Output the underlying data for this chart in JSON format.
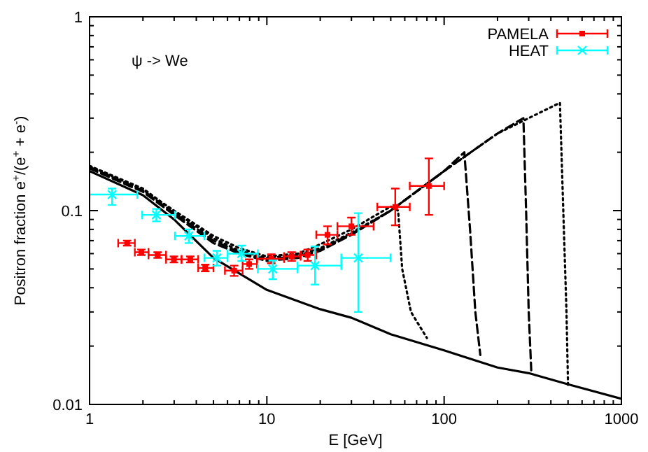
{
  "chart_data": {
    "type": "line",
    "xlabel": "E [GeV]",
    "ylabel": "Positron fraction e$^{+}$/(e$^{+}$ + e$^{-}$)",
    "log": "xy",
    "xlim": [
      1,
      1000
    ],
    "ylim": [
      0.01,
      1
    ],
    "xticks": [
      1,
      {
        "value": 2,
        "label": null
      },
      {
        "value": 3,
        "label": null
      },
      {
        "value": 4,
        "label": null
      },
      {
        "value": 5,
        "label": null
      },
      {
        "value": 6,
        "label": null
      },
      {
        "value": 7,
        "label": null
      },
      {
        "value": 8,
        "label": null
      },
      {
        "value": 9,
        "label": null
      },
      10,
      {
        "value": 20,
        "label": null
      },
      {
        "value": 30,
        "label": null
      },
      {
        "value": 40,
        "label": null
      },
      {
        "value": 50,
        "label": null
      },
      {
        "value": 60,
        "label": null
      },
      {
        "value": 70,
        "label": null
      },
      {
        "value": 80,
        "label": null
      },
      {
        "value": 90,
        "label": null
      },
      100,
      {
        "value": 200,
        "label": null
      },
      {
        "value": 300,
        "label": null
      },
      {
        "value": 400,
        "label": null
      },
      {
        "value": 500,
        "label": null
      },
      {
        "value": 600,
        "label": null
      },
      {
        "value": 700,
        "label": null
      },
      {
        "value": 800,
        "label": null
      },
      {
        "value": 900,
        "label": null
      },
      1000
    ],
    "yticks": [
      0.01,
      {
        "value": 0.02,
        "label": null
      },
      {
        "value": 0.03,
        "label": null
      },
      {
        "value": 0.04,
        "label": null
      },
      {
        "value": 0.05,
        "label": null
      },
      {
        "value": 0.06,
        "label": null
      },
      {
        "value": 0.07,
        "label": null
      },
      {
        "value": 0.08,
        "label": null
      },
      {
        "value": 0.09,
        "label": null
      },
      0.1,
      {
        "value": 0.2,
        "label": null
      },
      {
        "value": 0.3,
        "label": null
      },
      {
        "value": 0.4,
        "label": null
      },
      {
        "value": 0.5,
        "label": null
      },
      {
        "value": 0.6,
        "label": null
      },
      {
        "value": 0.7,
        "label": null
      },
      {
        "value": 0.8,
        "label": null
      },
      {
        "value": 0.9,
        "label": null
      },
      1
    ],
    "grid": false,
    "legend": "top right",
    "annotations": [
      "ψ -> We"
    ],
    "series": [
      {
        "type": "line",
        "color": "#000000",
        "line_style": "solid",
        "marker": "none",
        "x": [
          1,
          2,
          3,
          5,
          10,
          20,
          30,
          50,
          100,
          200,
          300,
          500,
          1000
        ],
        "values": [
          0.16,
          0.12,
          0.09,
          0.057,
          0.039,
          0.031,
          0.028,
          0.023,
          0.019,
          0.0155,
          0.0145,
          0.0127,
          0.0107
        ]
      },
      {
        "type": "line",
        "color": "#000000",
        "line_style": "dotted",
        "marker": "none",
        "x": [
          1,
          2,
          3,
          5,
          7,
          10,
          15,
          20,
          30,
          50,
          55,
          58,
          65,
          80
        ],
        "values": [
          0.17,
          0.128,
          0.1,
          0.074,
          0.064,
          0.058,
          0.06,
          0.067,
          0.08,
          0.105,
          0.1,
          0.05,
          0.03,
          0.022
        ]
      },
      {
        "type": "line",
        "color": "#000000",
        "line_style": "dashed",
        "marker": "none",
        "x": [
          1,
          2,
          3,
          5,
          7,
          10,
          15,
          20,
          30,
          50,
          100,
          130,
          140,
          150,
          160
        ],
        "values": [
          0.165,
          0.125,
          0.095,
          0.068,
          0.06,
          0.055,
          0.057,
          0.062,
          0.075,
          0.1,
          0.16,
          0.2,
          0.08,
          0.03,
          0.018
        ]
      },
      {
        "type": "line",
        "color": "#000000",
        "line_style": "dashed",
        "marker": "none",
        "x": [
          1,
          2,
          3,
          5,
          7,
          10,
          15,
          20,
          30,
          50,
          100,
          200,
          280,
          290,
          300,
          310
        ],
        "values": [
          0.168,
          0.127,
          0.097,
          0.07,
          0.061,
          0.056,
          0.058,
          0.063,
          0.076,
          0.1,
          0.16,
          0.25,
          0.3,
          0.1,
          0.03,
          0.015
        ]
      },
      {
        "type": "line",
        "color": "#000000",
        "line_style": "dotted",
        "marker": "none",
        "x": [
          1,
          2,
          3,
          5,
          7,
          10,
          15,
          20,
          30,
          50,
          100,
          200,
          300,
          450,
          470,
          490,
          500
        ],
        "values": [
          0.17,
          0.13,
          0.099,
          0.072,
          0.062,
          0.057,
          0.059,
          0.064,
          0.077,
          0.1,
          0.16,
          0.25,
          0.3,
          0.36,
          0.1,
          0.03,
          0.0125
        ]
      },
      {
        "type": "scatter",
        "name": "PAMELA",
        "color": "#ff0000",
        "marker": "square",
        "x": [
          1.63,
          1.96,
          2.42,
          2.99,
          3.7,
          4.49,
          6.54,
          7.95,
          10.6,
          13.8,
          17,
          22,
          30,
          53,
          82
        ],
        "values": [
          0.068,
          0.061,
          0.059,
          0.056,
          0.056,
          0.0506,
          0.049,
          0.053,
          0.0565,
          0.058,
          0.059,
          0.075,
          0.083,
          0.1045,
          0.134
        ],
        "errors": [
          0.002,
          0.002,
          0.002,
          0.002,
          0.002,
          0.002,
          0.003,
          0.003,
          0.003,
          0.003,
          0.004,
          [
            0.067,
            0.083
          ],
          [
            0.075,
            0.092
          ],
          [
            0.084,
            0.13
          ],
          [
            0.095,
            0.186
          ]
        ],
        "xerrors": [
          [
            1.45,
            1.8
          ],
          [
            1.8,
            2.15
          ],
          [
            2.15,
            2.7
          ],
          [
            2.7,
            3.3
          ],
          [
            3.3,
            4.1
          ],
          [
            4.1,
            5
          ],
          [
            5.8,
            7.3
          ],
          [
            7.3,
            8.8
          ],
          [
            8.8,
            12.5
          ],
          [
            12.5,
            15.5
          ],
          [
            15.5,
            19
          ],
          [
            19,
            25
          ],
          [
            25,
            40
          ],
          [
            42,
            64
          ],
          [
            64,
            100
          ]
        ]
      },
      {
        "type": "scatter",
        "name": "HEAT",
        "color": "#00ffff",
        "marker": "cross",
        "x": [
          1.34,
          2.38,
          3.63,
          5.23,
          7.21,
          10.8,
          18.7,
          32.8
        ],
        "values": [
          0.121,
          0.095,
          0.074,
          0.057,
          0.06,
          0.05,
          0.052,
          0.057
        ],
        "errors": [
          [
            0.107,
            0.13
          ],
          [
            0.088,
            0.102
          ],
          [
            0.068,
            0.08
          ],
          [
            0.052,
            0.062
          ],
          [
            0.055,
            0.066
          ],
          [
            0.0443,
            0.0553
          ],
          [
            0.0415,
            0.0653
          ],
          [
            0.03,
            0.097
          ]
        ],
        "xerrors": [
          [
            1,
            1.86
          ],
          [
            1.98,
            3.03
          ],
          [
            3.03,
            4.44
          ],
          [
            4.44,
            6
          ],
          [
            6,
            8.9
          ],
          [
            8.9,
            14.9
          ],
          [
            14.9,
            26.3
          ],
          [
            26.3,
            49.8
          ]
        ]
      }
    ]
  }
}
